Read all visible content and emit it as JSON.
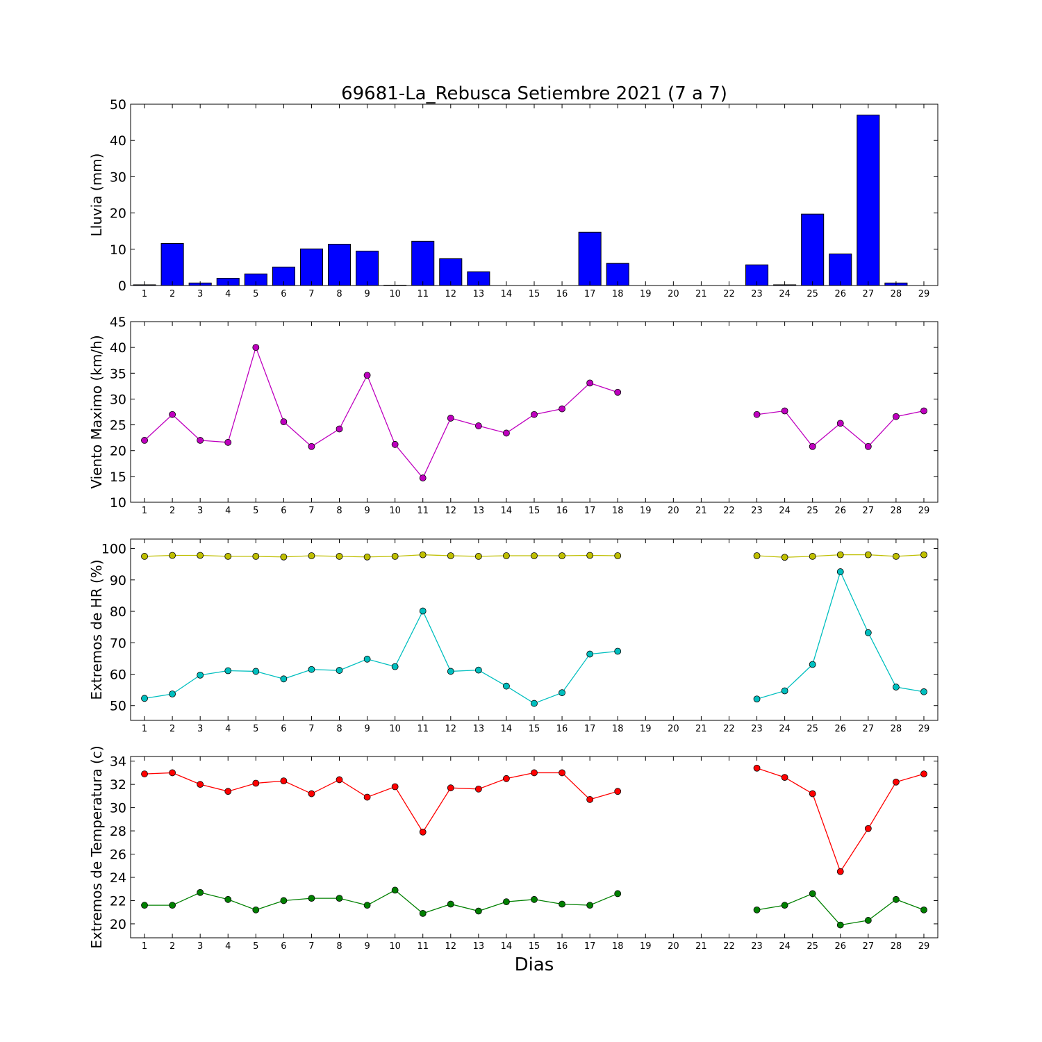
{
  "title": "69681-La_Rebusca Setiembre 2021  (7 a 7)",
  "xlabel": "Dias",
  "chart_data": [
    {
      "type": "bar",
      "ylabel": "Lluvia (mm)",
      "ylim": [
        0,
        50
      ],
      "yticks": [
        0,
        10,
        20,
        30,
        40,
        50
      ],
      "xlim": [
        0.5,
        29.5
      ],
      "categories": [
        1,
        2,
        3,
        4,
        5,
        6,
        7,
        8,
        9,
        10,
        11,
        12,
        13,
        14,
        15,
        16,
        17,
        18,
        19,
        20,
        21,
        22,
        23,
        24,
        25,
        26,
        27,
        28,
        29
      ],
      "series": [
        {
          "color": "#0000ff",
          "values": [
            0.2,
            11.6,
            0.7,
            2.0,
            3.2,
            5.1,
            10.1,
            11.4,
            9.5,
            0.1,
            12.2,
            7.4,
            3.8,
            0,
            0,
            0,
            14.7,
            6.1,
            0,
            0,
            0,
            0,
            5.7,
            0.2,
            19.7,
            8.7,
            47.0,
            0.7,
            0
          ]
        }
      ]
    },
    {
      "type": "line",
      "ylabel": "Viento Maximo (km/h)",
      "ylim": [
        10,
        45
      ],
      "yticks": [
        10,
        15,
        20,
        25,
        30,
        35,
        40,
        45
      ],
      "xlim": [
        0.5,
        29.5
      ],
      "x": [
        1,
        2,
        3,
        4,
        5,
        6,
        7,
        8,
        9,
        10,
        11,
        12,
        13,
        14,
        15,
        16,
        17,
        18,
        19,
        20,
        21,
        22,
        23,
        24,
        25,
        26,
        27,
        28,
        29
      ],
      "series": [
        {
          "color": "#bf00bf",
          "values": [
            22.0,
            27.0,
            22.0,
            21.6,
            40.0,
            25.6,
            20.8,
            24.2,
            34.6,
            21.2,
            14.7,
            26.3,
            24.8,
            23.4,
            27.0,
            28.1,
            33.1,
            31.3,
            null,
            null,
            null,
            null,
            27.0,
            27.7,
            20.8,
            25.3,
            20.8,
            26.6,
            27.7
          ]
        }
      ]
    },
    {
      "type": "line",
      "ylabel": "Extremos de HR (%)",
      "ylim": [
        45.3,
        103
      ],
      "yticks": [
        50,
        60,
        70,
        80,
        90,
        100
      ],
      "xlim": [
        0.5,
        29.5
      ],
      "x": [
        1,
        2,
        3,
        4,
        5,
        6,
        7,
        8,
        9,
        10,
        11,
        12,
        13,
        14,
        15,
        16,
        17,
        18,
        19,
        20,
        21,
        22,
        23,
        24,
        25,
        26,
        27,
        28,
        29
      ],
      "series": [
        {
          "color": "#bfbf00",
          "values": [
            97.5,
            97.8,
            97.8,
            97.5,
            97.5,
            97.3,
            97.7,
            97.5,
            97.3,
            97.5,
            98.0,
            97.7,
            97.5,
            97.7,
            97.7,
            97.7,
            97.8,
            97.7,
            null,
            null,
            null,
            null,
            97.7,
            97.2,
            97.5,
            98.0,
            98.0,
            97.5,
            98.0
          ]
        },
        {
          "color": "#00bfbf",
          "values": [
            52.3,
            53.7,
            59.7,
            61.1,
            60.9,
            58.5,
            61.5,
            61.2,
            64.8,
            62.4,
            80.1,
            60.9,
            61.3,
            56.2,
            50.7,
            54.1,
            66.4,
            67.3,
            null,
            null,
            null,
            null,
            52.1,
            54.7,
            63.1,
            92.6,
            73.2,
            55.9,
            54.4
          ]
        }
      ]
    },
    {
      "type": "line",
      "ylabel": "Extremos de Temperatura (c)",
      "ylim": [
        18.8,
        34.4
      ],
      "yticks": [
        20,
        22,
        24,
        26,
        28,
        30,
        32,
        34
      ],
      "xlim": [
        0.5,
        29.5
      ],
      "x": [
        1,
        2,
        3,
        4,
        5,
        6,
        7,
        8,
        9,
        10,
        11,
        12,
        13,
        14,
        15,
        16,
        17,
        18,
        19,
        20,
        21,
        22,
        23,
        24,
        25,
        26,
        27,
        28,
        29
      ],
      "series": [
        {
          "color": "#ff0000",
          "values": [
            32.9,
            33.0,
            32.0,
            31.4,
            32.1,
            32.3,
            31.2,
            32.4,
            30.9,
            31.8,
            27.9,
            31.7,
            31.6,
            32.5,
            33.0,
            33.0,
            30.7,
            31.4,
            null,
            null,
            null,
            null,
            33.4,
            32.6,
            31.2,
            24.5,
            28.2,
            32.2,
            32.9
          ]
        },
        {
          "color": "#008000",
          "values": [
            21.6,
            21.6,
            22.7,
            22.1,
            21.2,
            22.0,
            22.2,
            22.2,
            21.6,
            22.9,
            20.9,
            21.7,
            21.1,
            21.9,
            22.1,
            21.7,
            21.6,
            22.6,
            null,
            null,
            null,
            null,
            21.2,
            21.6,
            22.6,
            19.9,
            20.3,
            22.1,
            21.2
          ]
        }
      ]
    }
  ]
}
